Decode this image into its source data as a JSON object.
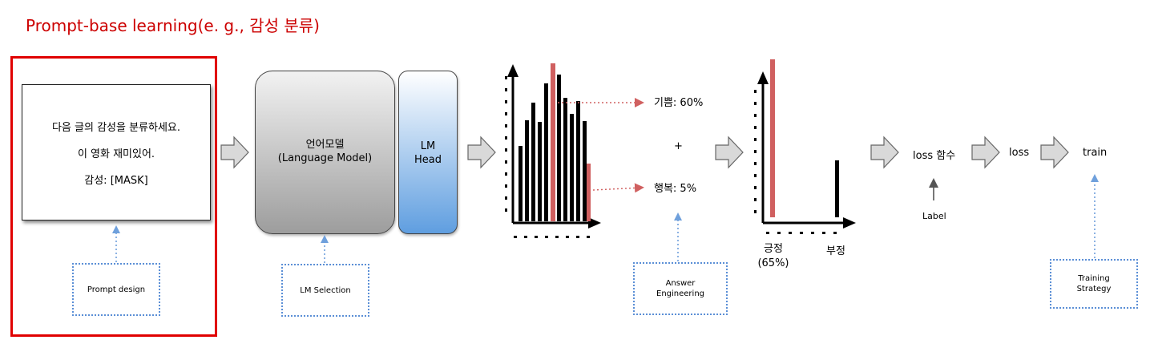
{
  "title": "Prompt-base learning(e. g., 감성 분류)",
  "prompt": {
    "line1": "다음 글의 감성을 분류하세요.",
    "line2": "이 영화 재미있어.",
    "line3": "감성: [MASK]"
  },
  "prompt_design_label": "Prompt design",
  "lm_selection_label": "LM Selection",
  "lm": {
    "line1": "언어모델",
    "line2": "(Language Model)"
  },
  "lm_head": {
    "line1": "LM",
    "line2": "Head"
  },
  "answers": {
    "joy": "기쁨: 60%",
    "plus": "+",
    "happy": "행복: 5%"
  },
  "answer_engineering": {
    "line1": "Answer",
    "line2": "Engineering"
  },
  "positive": {
    "line1": "긍정",
    "line2": "(65%)"
  },
  "negative": "부정",
  "loss_fn": "loss 함수",
  "label": "Label",
  "loss": "loss",
  "train": "train",
  "training_strategy": {
    "line1": "Training",
    "line2": "Strategy"
  },
  "colors": {
    "title": "#cc0000",
    "highlight": "#d06060",
    "dotted": "#5b8fd6",
    "arrow_fill": "#d9d9d9"
  }
}
